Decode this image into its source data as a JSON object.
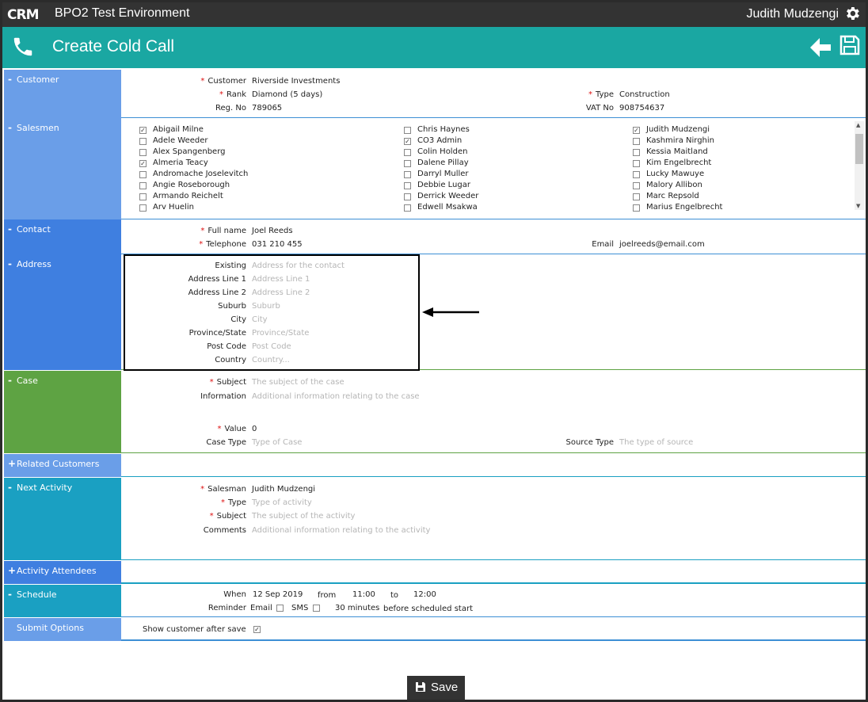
{
  "topbar": {
    "app_title": "BPO2 Test Environment",
    "user_name": "Judith Mudzengi"
  },
  "header": {
    "title": "Create Cold Call"
  },
  "customer": {
    "section_label": "Customer",
    "customer_label": "Customer",
    "customer_value": "Riverside Investments",
    "rank_label": "Rank",
    "rank_value": "Diamond (5 days)",
    "reg_label": "Reg. No",
    "reg_value": "789065",
    "type_label": "Type",
    "type_value": "Construction",
    "vat_label": "VAT No",
    "vat_value": "908754637"
  },
  "salesmen": {
    "section_label": "Salesmen",
    "col1": [
      {
        "name": "Abigail Milne",
        "checked": true
      },
      {
        "name": "Adele Weeder",
        "checked": false
      },
      {
        "name": "Alex Spangenberg",
        "checked": false
      },
      {
        "name": "Almeria Teacy",
        "checked": true
      },
      {
        "name": "Andromache Joselevitch",
        "checked": false
      },
      {
        "name": "Angie Roseborough",
        "checked": false
      },
      {
        "name": "Armando Reichelt",
        "checked": false
      },
      {
        "name": "Arv Huelin",
        "checked": false
      }
    ],
    "col2": [
      {
        "name": "Chris Haynes",
        "checked": false
      },
      {
        "name": "CO3 Admin",
        "checked": true
      },
      {
        "name": "Colin Holden",
        "checked": false
      },
      {
        "name": "Dalene Pillay",
        "checked": false
      },
      {
        "name": "Darryl Muller",
        "checked": false
      },
      {
        "name": "Debbie Lugar",
        "checked": false
      },
      {
        "name": "Derrick Weeder",
        "checked": false
      },
      {
        "name": "Edwell Msakwa",
        "checked": false
      }
    ],
    "col3": [
      {
        "name": "Judith Mudzengi",
        "checked": true
      },
      {
        "name": "Kashmira Nirghin",
        "checked": false
      },
      {
        "name": "Kessia Maitland",
        "checked": false
      },
      {
        "name": "Kim Engelbrecht",
        "checked": false
      },
      {
        "name": "Lucky Mawuye",
        "checked": false
      },
      {
        "name": "Malory Allibon",
        "checked": false
      },
      {
        "name": "Marc Repsold",
        "checked": false
      },
      {
        "name": "Marius Engelbrecht",
        "checked": false
      }
    ]
  },
  "contact": {
    "section_label": "Contact",
    "fullname_label": "Full name",
    "fullname_value": "Joel Reeds",
    "tel_label": "Telephone",
    "tel_value": "031 210 455",
    "email_label": "Email",
    "email_value": "joelreeds@email.com"
  },
  "address": {
    "section_label": "Address",
    "fields": [
      {
        "label": "Existing",
        "placeholder": "Address for the contact"
      },
      {
        "label": "Address Line 1",
        "placeholder": "Address Line 1"
      },
      {
        "label": "Address Line 2",
        "placeholder": "Address Line 2"
      },
      {
        "label": "Suburb",
        "placeholder": "Suburb"
      },
      {
        "label": "City",
        "placeholder": "City"
      },
      {
        "label": "Province/State",
        "placeholder": "Province/State"
      },
      {
        "label": "Post Code",
        "placeholder": "Post Code"
      },
      {
        "label": "Country",
        "placeholder": "Country..."
      }
    ]
  },
  "case": {
    "section_label": "Case",
    "subject_label": "Subject",
    "subject_placeholder": "The subject of the case",
    "info_label": "Information",
    "info_placeholder": "Additional information relating to the case",
    "value_label": "Value",
    "value_value": "0",
    "casetype_label": "Case Type",
    "casetype_placeholder": "Type of Case",
    "source_label": "Source Type",
    "source_placeholder": "The type of source"
  },
  "related": {
    "section_label": "Related Customers"
  },
  "next_activity": {
    "section_label": "Next Activity",
    "salesman_label": "Salesman",
    "salesman_value": "Judith Mudzengi",
    "type_label": "Type",
    "type_placeholder": "Type of activity",
    "subject_label": "Subject",
    "subject_placeholder": "The subject of the activity",
    "comments_label": "Comments",
    "comments_placeholder": "Additional information relating to the activity"
  },
  "attendees": {
    "section_label": "Activity Attendees"
  },
  "schedule": {
    "section_label": "Schedule",
    "when_label": "When",
    "when_date": "12 Sep 2019",
    "from_label": "from",
    "from_time": "11:00",
    "to_label": "to",
    "to_time": "12:00",
    "reminder_label": "Reminder",
    "email_label": "Email",
    "sms_label": "SMS",
    "minutes": "30 minutes",
    "before_text": "before scheduled start"
  },
  "submit": {
    "section_label": "Submit Options",
    "show_customer_label": "Show customer after save",
    "show_customer_checked": true
  },
  "footer": {
    "save_label": "Save"
  }
}
